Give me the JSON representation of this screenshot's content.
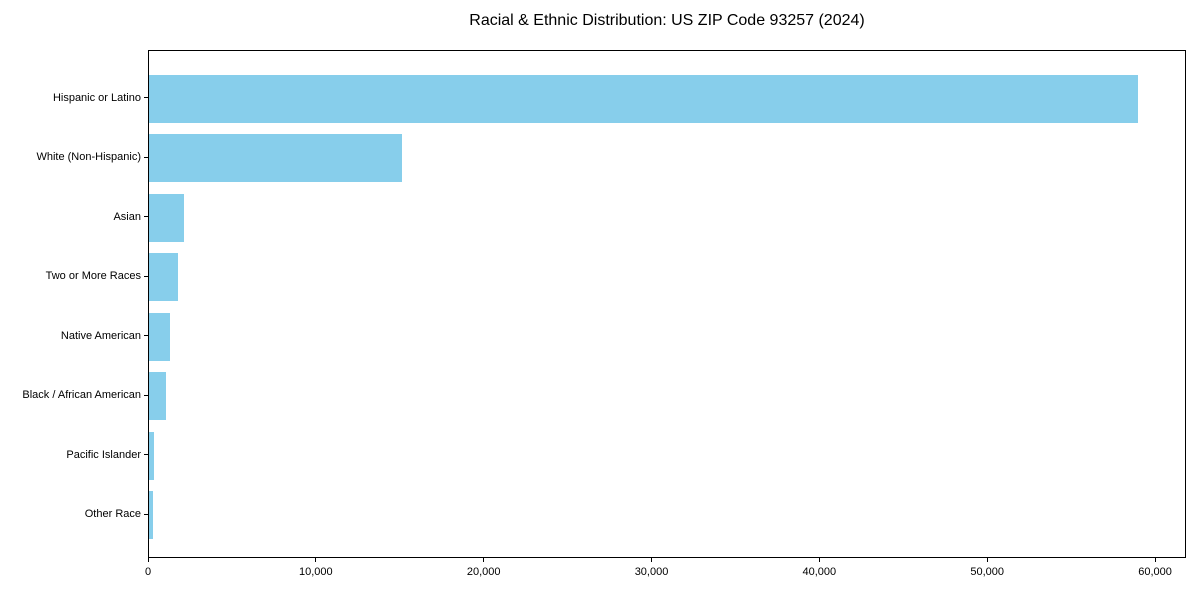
{
  "chart_data": {
    "type": "bar",
    "orientation": "horizontal",
    "title": "Racial & Ethnic Distribution: US ZIP Code 93257 (2024)",
    "categories": [
      "Hispanic or Latino",
      "White (Non-Hispanic)",
      "Asian",
      "Two or More Races",
      "Native American",
      "Black / African American",
      "Pacific Islander",
      "Other Race"
    ],
    "values": [
      58900,
      15100,
      2100,
      1700,
      1270,
      1000,
      300,
      220
    ],
    "xlabel": "",
    "ylabel": "",
    "xlim": [
      0,
      61845
    ],
    "xticks": [
      0,
      10000,
      20000,
      30000,
      40000,
      50000,
      60000
    ],
    "xtick_labels": [
      "0",
      "10,000",
      "20,000",
      "30,000",
      "40,000",
      "50,000",
      "60,000"
    ],
    "bar_color": "#87CEEB",
    "axis_color": "#000000",
    "text_color": "#000000",
    "background_color": "#FFFFFF",
    "grid": false,
    "legend": null
  }
}
